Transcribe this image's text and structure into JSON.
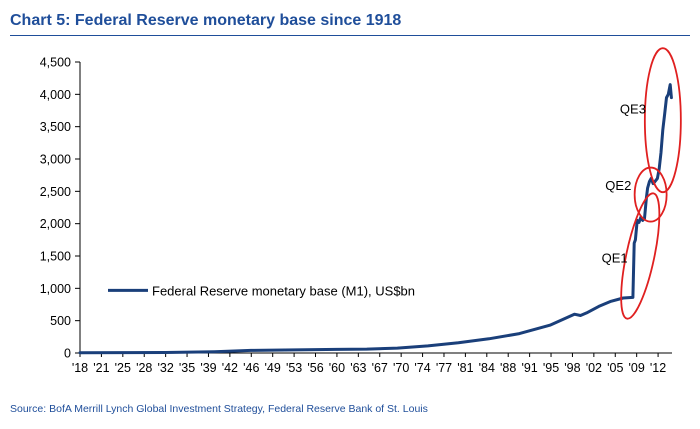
{
  "header": {
    "title": "Chart 5: Federal Reserve monetary base since 1918"
  },
  "footer": {
    "source": "Source: BofA Merrill Lynch Global Investment Strategy, Federal Reserve Bank of St. Louis"
  },
  "colors": {
    "series": "#1a3f7a",
    "annotation": "#e02020",
    "title": "#1f4e9a"
  },
  "chart_data": {
    "type": "line",
    "title": "Chart 5: Federal Reserve monetary base since 1918",
    "xlabel": "",
    "ylabel": "",
    "ylim": [
      0,
      4500
    ],
    "xlim": [
      1918,
      2015
    ],
    "y_ticks": [
      0,
      500,
      1000,
      1500,
      2000,
      2500,
      3000,
      3500,
      4000,
      4500
    ],
    "y_tick_labels": [
      "0",
      "500",
      "1,000",
      "1,500",
      "2,000",
      "2,500",
      "3,000",
      "3,500",
      "4,000",
      "4,500"
    ],
    "x_tick_labels": [
      "'18",
      "'21",
      "'25",
      "'28",
      "'32",
      "'35",
      "'39",
      "'42",
      "'46",
      "'49",
      "'53",
      "'56",
      "'60",
      "'63",
      "'67",
      "'70",
      "'74",
      "'77",
      "'81",
      "'84",
      "'88",
      "'91",
      "'95",
      "'98",
      "'02",
      "'05",
      "'09",
      "'12"
    ],
    "legend": "Federal Reserve monetary base (M1), US$bn",
    "legend_position": "middle-left",
    "annotations": [
      "QE1",
      "QE2",
      "QE3"
    ],
    "series": [
      {
        "name": "Federal Reserve monetary base (M1), US$bn",
        "x": [
          1918,
          1925,
          1932,
          1940,
          1946,
          1955,
          1960,
          1965,
          1970,
          1975,
          1980,
          1985,
          1990,
          1995,
          1999,
          2000,
          2001,
          2003,
          2005,
          2007,
          2008.6,
          2008.8,
          2009.0,
          2009.3,
          2009.6,
          2009.9,
          2010.2,
          2010.5,
          2010.8,
          2011.0,
          2011.3,
          2011.6,
          2011.9,
          2012.2,
          2012.6,
          2012.9,
          2013.2,
          2013.5,
          2013.8,
          2014.1,
          2014.4,
          2014.7,
          2014.9
        ],
        "y": [
          5,
          6,
          8,
          20,
          40,
          50,
          55,
          60,
          75,
          110,
          160,
          220,
          300,
          430,
          600,
          580,
          620,
          720,
          800,
          850,
          860,
          1700,
          1750,
          2050,
          2020,
          2100,
          2050,
          2080,
          2400,
          2550,
          2650,
          2700,
          2620,
          2650,
          2700,
          2850,
          3100,
          3450,
          3700,
          3950,
          4000,
          4150,
          3950
        ]
      }
    ]
  }
}
